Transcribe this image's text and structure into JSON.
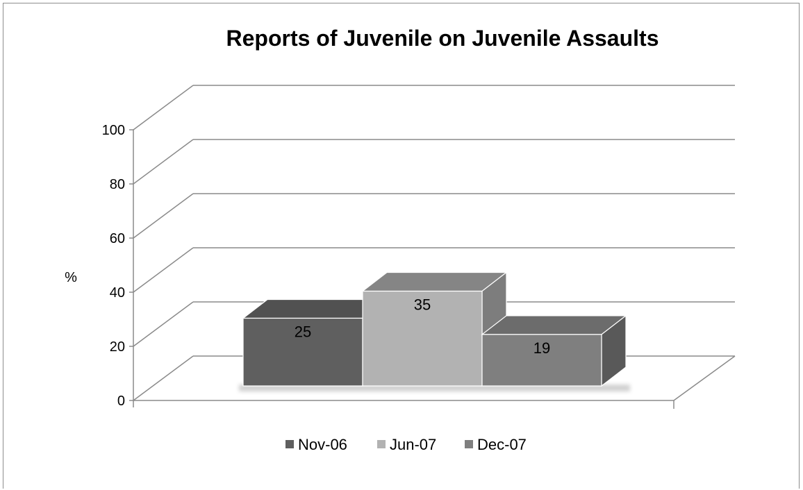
{
  "chart_data": {
    "type": "bar",
    "title": "Reports of Juvenile on Juvenile Assaults",
    "ylabel": "%",
    "xlabel": "",
    "ylim": [
      0,
      100
    ],
    "yticks": [
      "0",
      "20",
      "40",
      "60",
      "80",
      "100"
    ],
    "grid": true,
    "legend_position": "bottom",
    "series": [
      {
        "name": "Nov-06",
        "value": 25,
        "value_label": "25",
        "color": "#5f5f5f"
      },
      {
        "name": "Jun-07",
        "value": 35,
        "value_label": "35",
        "color": "#b2b2b2"
      },
      {
        "name": "Dec-07",
        "value": 19,
        "value_label": "19",
        "color": "#7f7f7f"
      }
    ]
  }
}
